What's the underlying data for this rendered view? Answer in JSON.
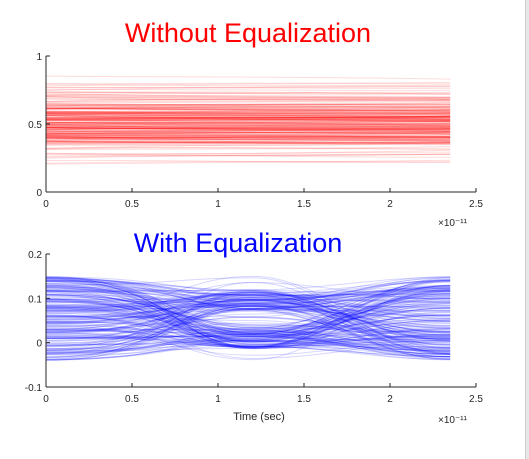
{
  "chart_data": [
    {
      "type": "line",
      "title": "Without Equalization",
      "title_color": "#ff0000",
      "series_color": "#ff0000",
      "xlabel": "",
      "ylabel": "",
      "x_exponent_label": "×10⁻¹¹",
      "xlim": [
        0,
        2.5
      ],
      "ylim": [
        0,
        1
      ],
      "data_x_range": [
        0,
        2.35
      ],
      "xticks": [
        0,
        0.5,
        1,
        1.5,
        2,
        2.5
      ],
      "xtick_labels": [
        "0",
        "0.5",
        "1",
        "1.5",
        "2",
        "2.5"
      ],
      "yticks": [
        0,
        0.5,
        1
      ],
      "ytick_labels": [
        "0",
        "0.5",
        "1"
      ],
      "band_mean": 0.5,
      "band_low": 0.13,
      "band_high": 0.88,
      "trace_count": 220,
      "grid": false
    },
    {
      "type": "line",
      "title": "With Equalization",
      "title_color": "#0000ff",
      "series_color": "#0000ff",
      "xlabel": "Time (sec)",
      "ylabel": "",
      "x_exponent_label": "×10⁻¹¹",
      "xlim": [
        0,
        2.5
      ],
      "ylim": [
        -0.1,
        0.2
      ],
      "data_x_range": [
        0,
        2.35
      ],
      "xticks": [
        0,
        0.5,
        1,
        1.5,
        2,
        2.5
      ],
      "xtick_labels": [
        "0",
        "0.5",
        "1",
        "1.5",
        "2",
        "2.5"
      ],
      "yticks": [
        -0.1,
        0,
        0.1,
        0.2
      ],
      "ytick_labels": [
        "-0.1",
        "0",
        "0.1",
        "0.2"
      ],
      "eye_center": [
        1.2,
        0.05
      ],
      "eye_upper_level": 0.095,
      "eye_lower_level": 0.01,
      "trace_count": 220,
      "grid": false
    }
  ]
}
